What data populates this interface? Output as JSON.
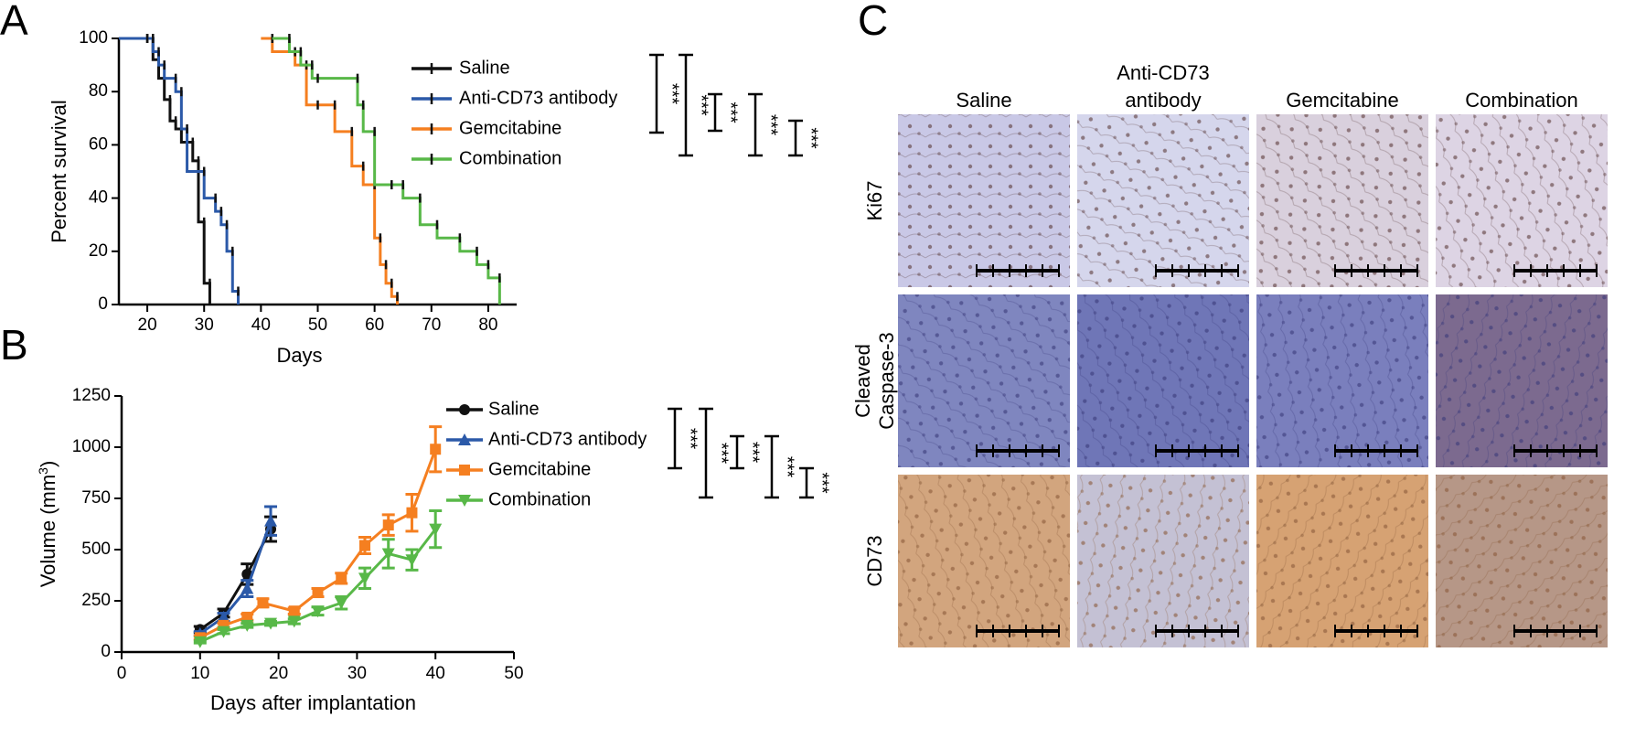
{
  "panel_labels": {
    "a": "A",
    "b": "B",
    "c": "C"
  },
  "sig": "***",
  "colors": {
    "saline": "#111111",
    "antibody": "#2b59a8",
    "gemcitabine": "#f57f20",
    "combination": "#58b848"
  },
  "chart_data": [
    {
      "type": "line",
      "step": true,
      "xlabel": "Days",
      "ylabel": "Percent survival",
      "xlim": [
        15,
        85
      ],
      "ylim": [
        0,
        100
      ],
      "xticks": [
        20,
        30,
        40,
        50,
        60,
        70,
        80
      ],
      "yticks": [
        0,
        20,
        40,
        60,
        80,
        100
      ],
      "legend_position": "right",
      "series": [
        {
          "name": "Saline",
          "color": "#111111",
          "x": [
            15,
            20,
            21,
            22,
            23,
            24,
            25,
            26,
            28,
            29,
            30,
            31
          ],
          "y": [
            100,
            100,
            92,
            85,
            77,
            69,
            66,
            61,
            54,
            31,
            8,
            0
          ],
          "censor": []
        },
        {
          "name": "Anti-CD73 antibody",
          "color": "#2b59a8",
          "x": [
            15,
            20,
            21,
            22,
            23,
            25,
            26,
            27,
            30,
            32,
            33,
            34,
            35,
            36
          ],
          "y": [
            100,
            100,
            95,
            90,
            85,
            80,
            66,
            50,
            40,
            35,
            30,
            20,
            5,
            0
          ],
          "censor": []
        },
        {
          "name": "Gemcitabine",
          "color": "#f57f20",
          "x": [
            40,
            42,
            46,
            48,
            50,
            53,
            56,
            58,
            60,
            61,
            62,
            63,
            64
          ],
          "y": [
            100,
            95,
            90,
            75,
            75,
            65,
            52,
            45,
            25,
            15,
            8,
            3,
            0
          ],
          "censor": []
        },
        {
          "name": "Combination",
          "color": "#58b848",
          "x": [
            42,
            45,
            47,
            49,
            50,
            57,
            58,
            60,
            63,
            65,
            68,
            71,
            75,
            78,
            80,
            82
          ],
          "y": [
            100,
            95,
            90,
            85,
            85,
            75,
            65,
            45,
            45,
            40,
            30,
            25,
            20,
            15,
            10,
            0
          ],
          "censor": []
        }
      ],
      "significance_brackets": [
        {
          "label": "***"
        },
        {
          "label": "***"
        },
        {
          "label": "***"
        },
        {
          "label": "***"
        },
        {
          "label": "***"
        }
      ]
    },
    {
      "type": "line",
      "xlabel": "Days after implantation",
      "ylabel": "Volume (mm",
      "ylabel_sup": "3",
      "ylabel_end": ")",
      "xlim": [
        0,
        50
      ],
      "ylim": [
        0,
        1250
      ],
      "xticks": [
        0,
        10,
        20,
        30,
        40,
        50
      ],
      "yticks": [
        0,
        250,
        500,
        750,
        1000,
        1250
      ],
      "legend_position": "right",
      "series": [
        {
          "name": "Saline",
          "color": "#111111",
          "marker": "circle",
          "x": [
            10,
            13,
            16,
            19
          ],
          "y": [
            110,
            190,
            380,
            600
          ],
          "err": [
            15,
            20,
            50,
            60
          ]
        },
        {
          "name": "Anti-CD73 antibody",
          "color": "#2b59a8",
          "marker": "triangle-up",
          "x": [
            10,
            13,
            16,
            19
          ],
          "y": [
            90,
            170,
            310,
            640
          ],
          "err": [
            10,
            20,
            40,
            70
          ]
        },
        {
          "name": "Gemcitabine",
          "color": "#f57f20",
          "marker": "square",
          "x": [
            10,
            13,
            16,
            18,
            22,
            25,
            28,
            31,
            34,
            37,
            40
          ],
          "y": [
            70,
            130,
            170,
            240,
            200,
            290,
            360,
            520,
            620,
            680,
            990
          ],
          "err": [
            8,
            10,
            15,
            20,
            15,
            20,
            25,
            40,
            50,
            90,
            110
          ]
        },
        {
          "name": "Combination",
          "color": "#58b848",
          "marker": "triangle-down",
          "x": [
            10,
            13,
            16,
            19,
            22,
            25,
            28,
            31,
            34,
            37,
            40
          ],
          "y": [
            50,
            100,
            130,
            140,
            150,
            200,
            240,
            360,
            480,
            450,
            600
          ],
          "err": [
            6,
            10,
            10,
            10,
            12,
            20,
            30,
            50,
            70,
            50,
            90
          ]
        }
      ],
      "significance_brackets": [
        {
          "label": "***"
        },
        {
          "label": "***"
        },
        {
          "label": "***"
        },
        {
          "label": "***"
        },
        {
          "label": "***"
        }
      ]
    }
  ],
  "panel_c": {
    "columns": [
      "Saline",
      "Anti-CD73\nantibody",
      "Gemcitabine",
      "Combination"
    ],
    "rows": [
      {
        "label": "Ki67",
        "images": [
          "#c9c8e6",
          "#d5d6ec",
          "#d9d0dd",
          "#ddd4e4"
        ]
      },
      {
        "label": "Cleaved\nCaspase-3",
        "images": [
          "#7f86bf",
          "#6f76b7",
          "#7a7fbd",
          "#7c6a8f"
        ]
      },
      {
        "label": "CD73",
        "images": [
          "#d2a57e",
          "#c4c1d4",
          "#d6a273",
          "#b69787"
        ]
      }
    ]
  }
}
